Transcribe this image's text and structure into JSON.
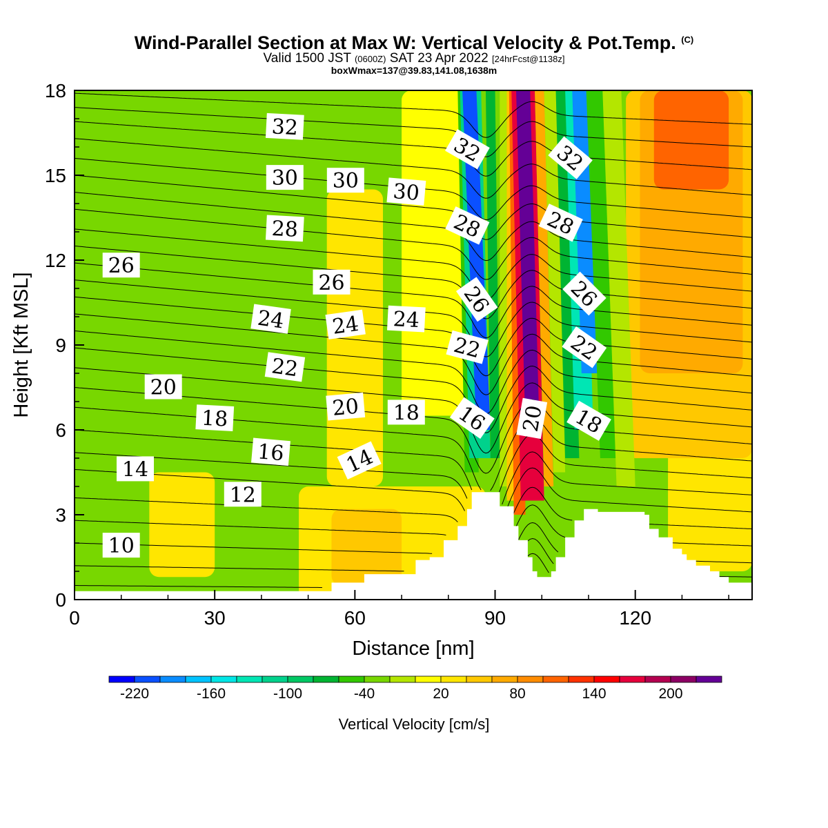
{
  "title": {
    "main": "Wind-Parallel Section at Max W: Vertical Velocity & Pot.Temp.",
    "copyright": "(C)",
    "valid_prefix": "Valid 1500 JST",
    "valid_utc": "(0600Z)",
    "valid_date": "SAT 23 Apr 2022",
    "forecast": "[24hrFcst@1138z]",
    "box": "boxWmax=137@39.83,141.08,1638m"
  },
  "chart_data": {
    "type": "heatmap",
    "xlabel": "Distance [nm]",
    "ylabel": "Height [Kft MSL]",
    "xlim": [
      0,
      145
    ],
    "ylim": [
      0,
      18
    ],
    "xticks": [
      0,
      30,
      60,
      90,
      120
    ],
    "yticks": [
      0,
      3,
      6,
      9,
      12,
      15,
      18
    ],
    "shaded_field": {
      "name": "Vertical Velocity [cm/s]",
      "colorbar_levels": [
        -240,
        -220,
        -200,
        -180,
        -160,
        -140,
        -120,
        -100,
        -80,
        -60,
        -40,
        -20,
        0,
        20,
        40,
        60,
        80,
        100,
        120,
        140,
        160,
        180,
        200,
        220,
        240
      ],
      "colorbar_labels": [
        "-220",
        "-160",
        "-100",
        "-40",
        "20",
        "80",
        "140",
        "200"
      ],
      "colors": [
        "#0000ff",
        "#0a50ff",
        "#0a8cff",
        "#00c3ff",
        "#00e6e6",
        "#00e6b4",
        "#00d28c",
        "#00c864",
        "#00b432",
        "#32c800",
        "#78d700",
        "#b4e600",
        "#ffff00",
        "#ffe600",
        "#ffc800",
        "#ffaa00",
        "#ff8c00",
        "#ff6400",
        "#ff3200",
        "#ff0000",
        "#e6003c",
        "#b40050",
        "#8c0064",
        "#640096"
      ],
      "regions": [
        {
          "x0": 0,
          "x1": 145,
          "z0": 0,
          "z1": 18,
          "w": -30
        },
        {
          "x0": 48,
          "x1": 88,
          "z0": 0,
          "z1": 4,
          "w": 30
        },
        {
          "x0": 55,
          "x1": 70,
          "z0": 0.5,
          "z1": 3.2,
          "w": 50
        },
        {
          "x0": 16,
          "x1": 30,
          "z0": 0.8,
          "z1": 4.5,
          "w": 20
        },
        {
          "x0": 54,
          "x1": 66,
          "z0": 4,
          "z1": 14.5,
          "w": 20
        },
        {
          "x0": 70,
          "x1": 84,
          "z0": 6.5,
          "z1": 18,
          "w": 10
        },
        {
          "x0": 127,
          "x1": 145,
          "z0": 1,
          "z1": 18,
          "w": 30
        },
        {
          "x0": 118,
          "x1": 145,
          "z0": 5,
          "z1": 18,
          "w": 50
        },
        {
          "x0": 121,
          "x1": 143,
          "z0": 8,
          "z1": 18,
          "w": 70
        },
        {
          "x0": 124,
          "x1": 140,
          "z0": 14.5,
          "z1": 18,
          "w": 100
        }
      ],
      "bands": [
        {
          "x0": 83.5,
          "x1": 86.5,
          "dx": -1.5,
          "z0": 4.5,
          "z1": 18,
          "w": -60
        },
        {
          "x0": 84.5,
          "x1": 89,
          "dx": -2,
          "z0": 5,
          "z1": 18,
          "w": -120
        },
        {
          "x0": 86,
          "x1": 89,
          "dx": -3,
          "z0": 6,
          "z1": 18,
          "w": -210
        },
        {
          "x0": 89,
          "x1": 91,
          "dx": -1,
          "z0": 5,
          "z1": 18,
          "w": -80
        },
        {
          "x0": 91,
          "x1": 92.5,
          "dx": 0,
          "z0": 4,
          "z1": 18,
          "w": -20
        },
        {
          "x0": 92.5,
          "x1": 94,
          "dx": 0,
          "z0": 3.5,
          "z1": 18,
          "w": 40
        },
        {
          "x0": 94,
          "x1": 96.5,
          "dx": -1,
          "z0": 3,
          "z1": 18,
          "w": 100
        },
        {
          "x0": 95.5,
          "x1": 100.5,
          "dx": -2,
          "z0": 3.5,
          "z1": 18,
          "w": 170
        },
        {
          "x0": 96.5,
          "x1": 99.5,
          "dx": -2,
          "z0": 6,
          "z1": 18,
          "w": 230
        },
        {
          "x0": 100.5,
          "x1": 102.5,
          "dx": -2,
          "z0": 4,
          "z1": 18,
          "w": 60
        },
        {
          "x0": 102.5,
          "x1": 105,
          "dx": -2,
          "z0": 4.5,
          "z1": 18,
          "w": -20
        },
        {
          "x0": 105,
          "x1": 108,
          "dx": -2,
          "z0": 5,
          "z1": 18,
          "w": -80
        },
        {
          "x0": 107,
          "x1": 111,
          "dx": -2,
          "z0": 6,
          "z1": 18,
          "w": -130
        },
        {
          "x0": 108.5,
          "x1": 112.5,
          "dx": -2,
          "z0": 8,
          "z1": 18,
          "w": -190
        },
        {
          "x0": 112.5,
          "x1": 117,
          "dx": -3,
          "z0": 5,
          "z1": 18,
          "w": -60
        },
        {
          "x0": 116,
          "x1": 120,
          "dx": -3,
          "z0": 4,
          "z1": 18,
          "w": -20
        }
      ]
    },
    "terrain_height_kft": {
      "x": [
        0,
        52,
        55,
        58,
        62,
        70,
        73,
        76,
        79,
        82,
        84,
        85,
        90,
        91,
        94,
        95,
        97,
        98,
        99,
        101,
        102,
        103,
        105,
        107,
        109,
        110,
        112,
        122,
        123,
        125,
        128,
        130,
        131,
        133,
        136,
        138,
        140,
        142,
        145
      ],
      "z": [
        0.3,
        0.3,
        0.6,
        0.6,
        0.9,
        0.9,
        1.4,
        1.5,
        2.1,
        2.6,
        3.2,
        3.8,
        3.8,
        3.3,
        2.6,
        2.1,
        1.5,
        1.0,
        0.8,
        0.8,
        1.0,
        1.5,
        2.2,
        2.8,
        3.2,
        3.2,
        3.1,
        3.0,
        2.5,
        2.2,
        1.8,
        1.6,
        1.4,
        1.2,
        1.0,
        0.8,
        0.6,
        0.6,
        0.6
      ]
    },
    "contours": {
      "name": "Potential Temperature",
      "interval": 1,
      "levels": [
        8,
        9,
        10,
        11,
        12,
        13,
        14,
        15,
        16,
        17,
        18,
        19,
        20,
        21,
        22,
        23,
        24,
        25,
        26,
        27,
        28,
        29,
        30,
        31,
        32,
        33,
        34
      ],
      "left_profile": {
        "z": [
          0.5,
          1.2,
          2.0,
          2.8,
          3.6,
          4.6,
          5.2,
          6.0,
          6.8,
          7.5,
          8.2,
          8.9,
          9.5,
          10.1,
          10.7,
          11.3,
          11.9,
          12.5,
          13.1,
          13.8,
          14.4,
          15.0,
          15.6,
          16.3,
          16.9,
          17.4,
          17.9
        ],
        "theta": [
          8,
          9,
          10,
          11,
          12,
          13,
          14,
          15,
          16,
          17,
          18,
          19,
          20,
          21,
          22,
          23,
          24,
          25,
          26,
          27,
          28,
          29,
          30,
          31,
          32,
          33,
          34
        ]
      },
      "right_profile": {
        "z": [
          0.3,
          0.8,
          1.3,
          1.9,
          2.5,
          3.1,
          3.7,
          4.3,
          4.9,
          5.5,
          6.1,
          6.7,
          7.3,
          7.9,
          8.5,
          9.1,
          9.7,
          10.3,
          10.9,
          11.5,
          12.1,
          12.8,
          13.5,
          14.3,
          15.2,
          16.0,
          16.8
        ],
        "theta": [
          8,
          9,
          10,
          11,
          12,
          13,
          14,
          15,
          16,
          17,
          18,
          19,
          20,
          21,
          22,
          23,
          24,
          25,
          26,
          27,
          28,
          29,
          30,
          31,
          32,
          33,
          34
        ]
      },
      "wave": {
        "x_center": 100,
        "width": 16,
        "trough_x": 88,
        "crest_x": 98
      },
      "labels": [
        {
          "text": "10",
          "x": 10,
          "z": 1.9,
          "rot": 0
        },
        {
          "text": "12",
          "x": 36,
          "z": 3.7,
          "rot": 0
        },
        {
          "text": "14",
          "x": 13,
          "z": 4.6,
          "rot": 0
        },
        {
          "text": "14",
          "x": 61,
          "z": 4.9,
          "rot": -25
        },
        {
          "text": "16",
          "x": 42,
          "z": 5.2,
          "rot": 5
        },
        {
          "text": "18",
          "x": 30,
          "z": 6.4,
          "rot": 3
        },
        {
          "text": "18",
          "x": 71,
          "z": 6.6,
          "rot": 0
        },
        {
          "text": "16",
          "x": 85,
          "z": 6.4,
          "rot": 35
        },
        {
          "text": "20",
          "x": 58,
          "z": 6.8,
          "rot": -5
        },
        {
          "text": "20",
          "x": 19,
          "z": 7.5,
          "rot": 0
        },
        {
          "text": "20",
          "x": 98,
          "z": 6.4,
          "rot": -80
        },
        {
          "text": "18",
          "x": 110,
          "z": 6.3,
          "rot": 30
        },
        {
          "text": "22",
          "x": 45,
          "z": 8.2,
          "rot": 8
        },
        {
          "text": "22",
          "x": 84,
          "z": 8.9,
          "rot": 15
        },
        {
          "text": "22",
          "x": 109,
          "z": 8.9,
          "rot": 35
        },
        {
          "text": "24",
          "x": 42,
          "z": 9.9,
          "rot": 8
        },
        {
          "text": "24",
          "x": 58,
          "z": 9.7,
          "rot": -8
        },
        {
          "text": "24",
          "x": 71,
          "z": 9.9,
          "rot": 3
        },
        {
          "text": "26",
          "x": 10,
          "z": 11.8,
          "rot": 0
        },
        {
          "text": "26",
          "x": 55,
          "z": 11.2,
          "rot": 0
        },
        {
          "text": "26",
          "x": 86,
          "z": 10.6,
          "rot": 55
        },
        {
          "text": "26",
          "x": 109,
          "z": 10.8,
          "rot": 45
        },
        {
          "text": "28",
          "x": 45,
          "z": 13.1,
          "rot": 3
        },
        {
          "text": "28",
          "x": 84,
          "z": 13.2,
          "rot": 25
        },
        {
          "text": "28",
          "x": 104,
          "z": 13.3,
          "rot": 25
        },
        {
          "text": "30",
          "x": 45,
          "z": 14.9,
          "rot": 0
        },
        {
          "text": "30",
          "x": 58,
          "z": 14.8,
          "rot": 0
        },
        {
          "text": "30",
          "x": 71,
          "z": 14.4,
          "rot": 5
        },
        {
          "text": "32",
          "x": 45,
          "z": 16.7,
          "rot": 3
        },
        {
          "text": "32",
          "x": 84,
          "z": 15.9,
          "rot": 30
        },
        {
          "text": "32",
          "x": 106,
          "z": 15.6,
          "rot": 40
        }
      ]
    }
  }
}
